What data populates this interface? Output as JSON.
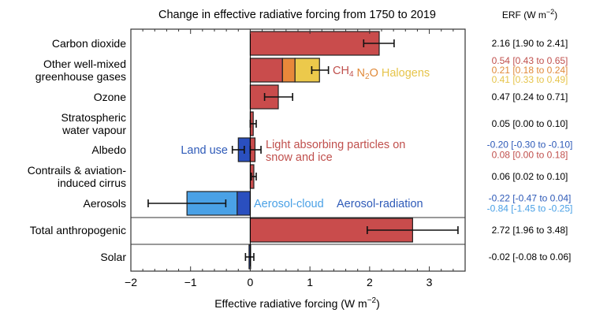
{
  "chart_data": {
    "type": "bar",
    "orientation": "horizontal",
    "title": "Change in effective radiative forcing from 1750 to 2019",
    "xlabel": "Effective radiative forcing (W m⁻²)",
    "xlabel_parts": {
      "main": "Effective radiative forcing (W m",
      "sup": "−2",
      "tail": ")"
    },
    "xlim": [
      -2,
      3.6
    ],
    "xticks": [
      -2,
      -1,
      0,
      1,
      2,
      3
    ],
    "xtick_labels": [
      "−2",
      "−1",
      "0",
      "1",
      "2",
      "3"
    ],
    "erf_header": {
      "main": "ERF (W m",
      "sup": "−2",
      "tail": ")"
    },
    "colors": {
      "co2_red": "#c94c4c",
      "n2o_orange": "#e8883a",
      "halogen_yellow": "#ecc94b",
      "land_blue": "#2a4fbf",
      "aer_cloud_blue": "#4aa1e6",
      "aer_rad_blue": "#2a4fbf",
      "text_red": "#c0504d",
      "text_orange": "#e08a3a",
      "text_yellow": "#e6c44a",
      "text_blue": "#2e5ab8",
      "text_lightblue": "#4aa1e6"
    },
    "rows": [
      {
        "label": [
          "Carbon dioxide"
        ],
        "segments": [
          {
            "name": "CO2",
            "value": 2.16,
            "color": "#c94c4c"
          }
        ],
        "errors": [
          {
            "center": 2.16,
            "low": 1.9,
            "high": 2.41
          }
        ],
        "erf": [
          {
            "text": "2.16 [1.90 to 2.41]",
            "color": "#000000"
          }
        ]
      },
      {
        "label": [
          "Other well-mixed",
          "greenhouse gases"
        ],
        "segments": [
          {
            "name": "CH4",
            "value": 0.54,
            "color": "#c94c4c"
          },
          {
            "name": "N2O",
            "value": 0.21,
            "color": "#e8883a"
          },
          {
            "name": "Halogens",
            "value": 0.41,
            "color": "#ecc94b"
          }
        ],
        "errors": [
          {
            "center": 1.16,
            "low": 1.03,
            "high": 1.31
          }
        ],
        "erf": [
          {
            "text": "0.54 [0.43 to 0.65]",
            "color": "#c0504d"
          },
          {
            "text": "0.21 [0.18 to 0.24]",
            "color": "#e08a3a"
          },
          {
            "text": "0.41 [0.33 to 0.49]",
            "color": "#e6c44a"
          }
        ]
      },
      {
        "label": [
          "Ozone"
        ],
        "segments": [
          {
            "name": "Ozone",
            "value": 0.47,
            "color": "#c94c4c"
          }
        ],
        "errors": [
          {
            "center": 0.47,
            "low": 0.24,
            "high": 0.71
          }
        ],
        "erf": [
          {
            "text": "0.47 [0.24 to 0.71]",
            "color": "#000000"
          }
        ]
      },
      {
        "label": [
          "Stratospheric",
          "water vapour"
        ],
        "segments": [
          {
            "name": "Stratospheric water vapour",
            "value": 0.05,
            "color": "#c94c4c"
          }
        ],
        "errors": [
          {
            "center": 0.05,
            "low": 0.0,
            "high": 0.1
          }
        ],
        "erf": [
          {
            "text": "0.05 [0.00 to 0.10]",
            "color": "#000000"
          }
        ]
      },
      {
        "label": [
          "Albedo"
        ],
        "segments": [
          {
            "name": "Land use",
            "value": -0.2,
            "color": "#2a4fbf"
          },
          {
            "name": "Light absorbing particles on snow and ice",
            "value": 0.08,
            "color": "#c94c4c"
          }
        ],
        "errors": [
          {
            "center": -0.2,
            "low": -0.3,
            "high": -0.1
          },
          {
            "center": 0.08,
            "low": 0.0,
            "high": 0.18
          }
        ],
        "erf": [
          {
            "text": "-0.20 [-0.30 to -0.10]",
            "color": "#2e5ab8"
          },
          {
            "text": "0.08 [0.00 to 0.18]",
            "color": "#c0504d"
          }
        ]
      },
      {
        "label": [
          "Contrails & aviation-",
          "induced cirrus"
        ],
        "segments": [
          {
            "name": "Contrails",
            "value": 0.06,
            "color": "#c94c4c"
          }
        ],
        "errors": [
          {
            "center": 0.06,
            "low": 0.02,
            "high": 0.1
          }
        ],
        "erf": [
          {
            "text": "0.06 [0.02 to 0.10]",
            "color": "#000000"
          }
        ]
      },
      {
        "label": [
          "Aerosols"
        ],
        "segments": [
          {
            "name": "Aerosol-radiation",
            "value": -0.22,
            "color": "#2a4fbf"
          },
          {
            "name": "Aerosol-cloud",
            "value": -0.84,
            "color": "#4aa1e6"
          }
        ],
        "errors": [
          {
            "center": -1.06,
            "low": -1.71,
            "high": -0.41
          }
        ],
        "erf": [
          {
            "text": "-0.22 [-0.47 to 0.04]",
            "color": "#2e5ab8"
          },
          {
            "text": "-0.84 [-1.45 to -0.25]",
            "color": "#4aa1e6"
          }
        ]
      },
      {
        "label": [
          "Total anthropogenic"
        ],
        "segments": [
          {
            "name": "Total anthropogenic",
            "value": 2.72,
            "color": "#c94c4c"
          }
        ],
        "errors": [
          {
            "center": 2.72,
            "low": 1.96,
            "high": 3.48
          }
        ],
        "erf": [
          {
            "text": "2.72 [1.96 to 3.48]",
            "color": "#000000"
          }
        ]
      },
      {
        "label": [
          "Solar"
        ],
        "segments": [
          {
            "name": "Solar",
            "value": -0.02,
            "color": "#2a4fbf"
          }
        ],
        "errors": [
          {
            "center": -0.02,
            "low": -0.08,
            "high": 0.06
          }
        ],
        "erf": [
          {
            "text": "-0.02 [-0.08 to 0.06]",
            "color": "#000000"
          }
        ]
      }
    ],
    "annotations": [
      {
        "row": 1,
        "parts": [
          {
            "text": "CH",
            "sub": "4",
            "color": "#c0504d"
          },
          {
            "text": "N",
            "sub": "2",
            "tail": "O",
            "color": "#e08a3a"
          },
          {
            "text": "Halogens",
            "color": "#e6c44a"
          }
        ]
      },
      {
        "row": 4,
        "text": "Land use",
        "color": "#2e5ab8",
        "side": "left"
      },
      {
        "row": 4,
        "lines": [
          "Light absorbing particles on",
          "snow and ice"
        ],
        "color": "#c0504d",
        "side": "right"
      },
      {
        "row": 6,
        "text": "Aerosol-cloud",
        "color": "#4aa1e6",
        "side": "right"
      },
      {
        "row": 6,
        "text": "Aerosol-radiation",
        "color": "#2e5ab8",
        "side": "right"
      }
    ],
    "separators_after_rows": [
      6,
      7
    ],
    "grid": false,
    "legend": "none"
  }
}
